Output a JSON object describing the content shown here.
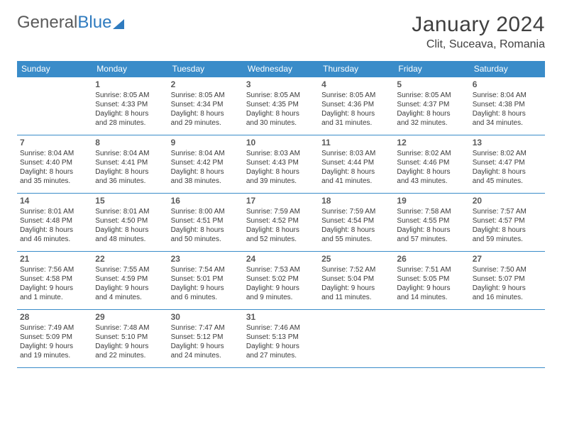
{
  "logo": {
    "part1": "General",
    "part2": "Blue"
  },
  "title": {
    "month": "January 2024",
    "location": "Clit, Suceava, Romania"
  },
  "colors": {
    "header_bg": "#3a8cc9",
    "header_text": "#ffffff",
    "rule": "#3a8cc9",
    "text": "#3a3a3a",
    "logo_blue": "#2f7bbf"
  },
  "weekdays": [
    "Sunday",
    "Monday",
    "Tuesday",
    "Wednesday",
    "Thursday",
    "Friday",
    "Saturday"
  ],
  "weeks": [
    [
      null,
      {
        "n": "1",
        "sr": "Sunrise: 8:05 AM",
        "ss": "Sunset: 4:33 PM",
        "d1": "Daylight: 8 hours",
        "d2": "and 28 minutes."
      },
      {
        "n": "2",
        "sr": "Sunrise: 8:05 AM",
        "ss": "Sunset: 4:34 PM",
        "d1": "Daylight: 8 hours",
        "d2": "and 29 minutes."
      },
      {
        "n": "3",
        "sr": "Sunrise: 8:05 AM",
        "ss": "Sunset: 4:35 PM",
        "d1": "Daylight: 8 hours",
        "d2": "and 30 minutes."
      },
      {
        "n": "4",
        "sr": "Sunrise: 8:05 AM",
        "ss": "Sunset: 4:36 PM",
        "d1": "Daylight: 8 hours",
        "d2": "and 31 minutes."
      },
      {
        "n": "5",
        "sr": "Sunrise: 8:05 AM",
        "ss": "Sunset: 4:37 PM",
        "d1": "Daylight: 8 hours",
        "d2": "and 32 minutes."
      },
      {
        "n": "6",
        "sr": "Sunrise: 8:04 AM",
        "ss": "Sunset: 4:38 PM",
        "d1": "Daylight: 8 hours",
        "d2": "and 34 minutes."
      }
    ],
    [
      {
        "n": "7",
        "sr": "Sunrise: 8:04 AM",
        "ss": "Sunset: 4:40 PM",
        "d1": "Daylight: 8 hours",
        "d2": "and 35 minutes."
      },
      {
        "n": "8",
        "sr": "Sunrise: 8:04 AM",
        "ss": "Sunset: 4:41 PM",
        "d1": "Daylight: 8 hours",
        "d2": "and 36 minutes."
      },
      {
        "n": "9",
        "sr": "Sunrise: 8:04 AM",
        "ss": "Sunset: 4:42 PM",
        "d1": "Daylight: 8 hours",
        "d2": "and 38 minutes."
      },
      {
        "n": "10",
        "sr": "Sunrise: 8:03 AM",
        "ss": "Sunset: 4:43 PM",
        "d1": "Daylight: 8 hours",
        "d2": "and 39 minutes."
      },
      {
        "n": "11",
        "sr": "Sunrise: 8:03 AM",
        "ss": "Sunset: 4:44 PM",
        "d1": "Daylight: 8 hours",
        "d2": "and 41 minutes."
      },
      {
        "n": "12",
        "sr": "Sunrise: 8:02 AM",
        "ss": "Sunset: 4:46 PM",
        "d1": "Daylight: 8 hours",
        "d2": "and 43 minutes."
      },
      {
        "n": "13",
        "sr": "Sunrise: 8:02 AM",
        "ss": "Sunset: 4:47 PM",
        "d1": "Daylight: 8 hours",
        "d2": "and 45 minutes."
      }
    ],
    [
      {
        "n": "14",
        "sr": "Sunrise: 8:01 AM",
        "ss": "Sunset: 4:48 PM",
        "d1": "Daylight: 8 hours",
        "d2": "and 46 minutes."
      },
      {
        "n": "15",
        "sr": "Sunrise: 8:01 AM",
        "ss": "Sunset: 4:50 PM",
        "d1": "Daylight: 8 hours",
        "d2": "and 48 minutes."
      },
      {
        "n": "16",
        "sr": "Sunrise: 8:00 AM",
        "ss": "Sunset: 4:51 PM",
        "d1": "Daylight: 8 hours",
        "d2": "and 50 minutes."
      },
      {
        "n": "17",
        "sr": "Sunrise: 7:59 AM",
        "ss": "Sunset: 4:52 PM",
        "d1": "Daylight: 8 hours",
        "d2": "and 52 minutes."
      },
      {
        "n": "18",
        "sr": "Sunrise: 7:59 AM",
        "ss": "Sunset: 4:54 PM",
        "d1": "Daylight: 8 hours",
        "d2": "and 55 minutes."
      },
      {
        "n": "19",
        "sr": "Sunrise: 7:58 AM",
        "ss": "Sunset: 4:55 PM",
        "d1": "Daylight: 8 hours",
        "d2": "and 57 minutes."
      },
      {
        "n": "20",
        "sr": "Sunrise: 7:57 AM",
        "ss": "Sunset: 4:57 PM",
        "d1": "Daylight: 8 hours",
        "d2": "and 59 minutes."
      }
    ],
    [
      {
        "n": "21",
        "sr": "Sunrise: 7:56 AM",
        "ss": "Sunset: 4:58 PM",
        "d1": "Daylight: 9 hours",
        "d2": "and 1 minute."
      },
      {
        "n": "22",
        "sr": "Sunrise: 7:55 AM",
        "ss": "Sunset: 4:59 PM",
        "d1": "Daylight: 9 hours",
        "d2": "and 4 minutes."
      },
      {
        "n": "23",
        "sr": "Sunrise: 7:54 AM",
        "ss": "Sunset: 5:01 PM",
        "d1": "Daylight: 9 hours",
        "d2": "and 6 minutes."
      },
      {
        "n": "24",
        "sr": "Sunrise: 7:53 AM",
        "ss": "Sunset: 5:02 PM",
        "d1": "Daylight: 9 hours",
        "d2": "and 9 minutes."
      },
      {
        "n": "25",
        "sr": "Sunrise: 7:52 AM",
        "ss": "Sunset: 5:04 PM",
        "d1": "Daylight: 9 hours",
        "d2": "and 11 minutes."
      },
      {
        "n": "26",
        "sr": "Sunrise: 7:51 AM",
        "ss": "Sunset: 5:05 PM",
        "d1": "Daylight: 9 hours",
        "d2": "and 14 minutes."
      },
      {
        "n": "27",
        "sr": "Sunrise: 7:50 AM",
        "ss": "Sunset: 5:07 PM",
        "d1": "Daylight: 9 hours",
        "d2": "and 16 minutes."
      }
    ],
    [
      {
        "n": "28",
        "sr": "Sunrise: 7:49 AM",
        "ss": "Sunset: 5:09 PM",
        "d1": "Daylight: 9 hours",
        "d2": "and 19 minutes."
      },
      {
        "n": "29",
        "sr": "Sunrise: 7:48 AM",
        "ss": "Sunset: 5:10 PM",
        "d1": "Daylight: 9 hours",
        "d2": "and 22 minutes."
      },
      {
        "n": "30",
        "sr": "Sunrise: 7:47 AM",
        "ss": "Sunset: 5:12 PM",
        "d1": "Daylight: 9 hours",
        "d2": "and 24 minutes."
      },
      {
        "n": "31",
        "sr": "Sunrise: 7:46 AM",
        "ss": "Sunset: 5:13 PM",
        "d1": "Daylight: 9 hours",
        "d2": "and 27 minutes."
      },
      null,
      null,
      null
    ]
  ]
}
